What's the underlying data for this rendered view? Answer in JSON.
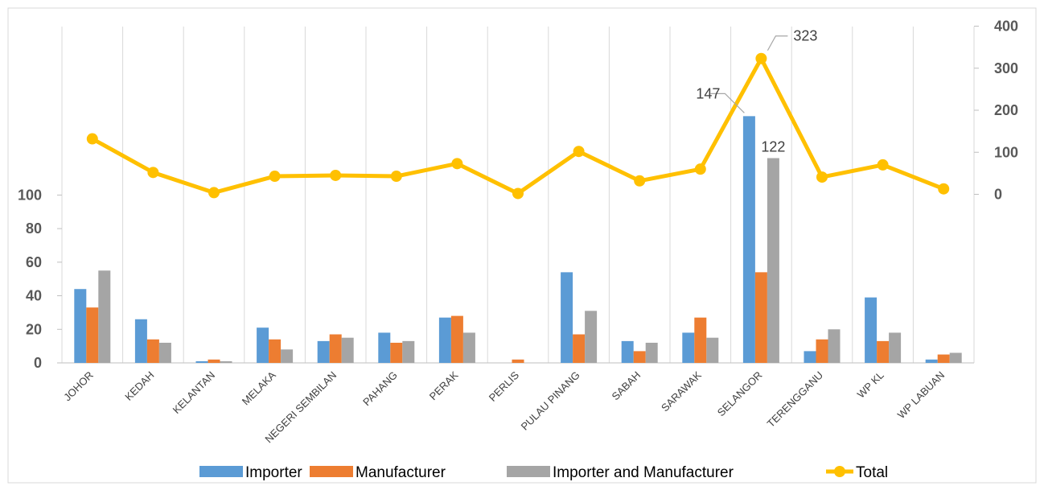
{
  "chart_data": {
    "type": "bar",
    "categories": [
      "JOHOR",
      "KEDAH",
      "KELANTAN",
      "MELAKA",
      "NEGERI SEMBILAN",
      "PAHANG",
      "PERAK",
      "PERLIS",
      "PULAU PINANG",
      "SABAH",
      "SARAWAK",
      "SELANGOR",
      "TERENGGANU",
      "WP KL",
      "WP LABUAN"
    ],
    "series": [
      {
        "name": "Importer",
        "type": "bar",
        "axis": "left",
        "color": "#5B9BD5",
        "values": [
          44,
          26,
          1,
          21,
          13,
          18,
          27,
          0,
          54,
          13,
          18,
          147,
          7,
          39,
          2
        ]
      },
      {
        "name": "Manufacturer",
        "type": "bar",
        "axis": "left",
        "color": "#ED7D31",
        "values": [
          33,
          14,
          2,
          14,
          17,
          12,
          28,
          2,
          17,
          7,
          27,
          54,
          14,
          13,
          5
        ]
      },
      {
        "name": "Importer and Manufacturer",
        "type": "bar",
        "axis": "left",
        "color": "#A5A5A5",
        "values": [
          55,
          12,
          1,
          8,
          15,
          13,
          18,
          0,
          31,
          12,
          15,
          122,
          20,
          18,
          6
        ]
      },
      {
        "name": "Total",
        "type": "line",
        "axis": "right",
        "color": "#FFC000",
        "values": [
          132,
          52,
          4,
          43,
          45,
          43,
          73,
          2,
          102,
          32,
          60,
          323,
          41,
          70,
          13
        ]
      }
    ],
    "y_left": {
      "ticks": [
        0,
        20,
        40,
        60,
        80,
        100
      ],
      "range": [
        0,
        200
      ]
    },
    "y_right": {
      "ticks": [
        0,
        100,
        200,
        300,
        400
      ],
      "range": [
        0,
        400
      ]
    },
    "data_labels": [
      {
        "series": "Total",
        "category": "SELANGOR",
        "text": "323"
      },
      {
        "series": "Importer",
        "category": "SELANGOR",
        "text": "147"
      },
      {
        "series": "Importer and Manufacturer",
        "category": "SELANGOR",
        "text": "122"
      }
    ],
    "grid": "vertical",
    "legend": "bottom",
    "title": "",
    "xlabel": "",
    "ylabel": ""
  }
}
